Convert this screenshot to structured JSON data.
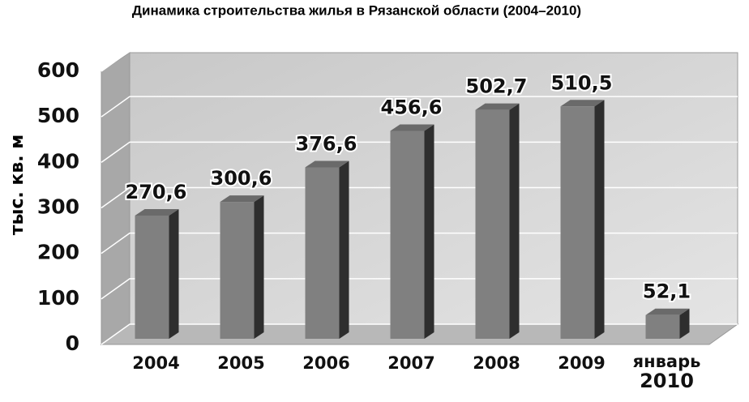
{
  "chart_data": {
    "type": "bar3d",
    "title": "Динамика строительства жилья в Рязанской области (2004–2010)",
    "y_label": "тыс. кв. м",
    "categories": [
      "2004",
      "2005",
      "2006",
      "2007",
      "2008",
      "2009",
      "январь 2010"
    ],
    "values": [
      270.6,
      300.6,
      376.6,
      456.6,
      502.7,
      510.5,
      52.1
    ],
    "value_labels": [
      "270,6",
      "300,6",
      "376,6",
      "456,6",
      "502,7",
      "510,5",
      "52,1"
    ],
    "color": "#808080",
    "ylim": [
      0,
      600
    ],
    "yticks": [
      0,
      100,
      200,
      300,
      400,
      500,
      600
    ],
    "grid": true
  }
}
